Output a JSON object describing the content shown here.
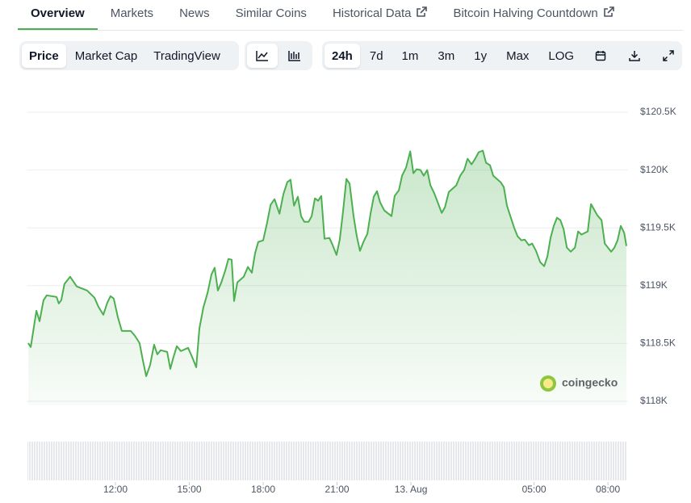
{
  "tabs": [
    "Overview",
    "Markets",
    "News",
    "Similar Coins",
    "Historical Data",
    "Bitcoin Halving Countdown"
  ],
  "chart_modes": [
    "Price",
    "Market Cap",
    "TradingView"
  ],
  "ranges": [
    "24h",
    "7d",
    "1m",
    "3m",
    "1y",
    "Max",
    "LOG"
  ],
  "watermark": "coingecko",
  "chart_data": {
    "type": "area",
    "color": "#4caf50",
    "grid": true,
    "x": [
      8.46,
      8.56,
      8.79,
      8.92,
      9.08,
      9.21,
      9.61,
      9.7,
      9.8,
      9.93,
      10.16,
      10.43,
      10.85,
      11.15,
      11.31,
      11.51,
      11.67,
      11.8,
      11.93,
      12.1,
      12.26,
      12.62,
      12.79,
      12.98,
      13.11,
      13.25,
      13.41,
      13.57,
      13.7,
      13.84,
      14.1,
      14.23,
      14.36,
      14.49,
      14.66,
      14.95,
      15.11,
      15.28,
      15.41,
      15.57,
      15.74,
      15.9,
      16.03,
      16.16,
      16.3,
      16.46,
      16.59,
      16.72,
      16.82,
      16.95,
      17.21,
      17.38,
      17.54,
      17.67,
      17.8,
      18.0,
      18.16,
      18.3,
      18.46,
      18.66,
      18.82,
      18.98,
      19.11,
      19.25,
      19.41,
      19.54,
      19.67,
      19.84,
      19.97,
      20.1,
      20.23,
      20.36,
      20.49,
      20.69,
      20.82,
      20.98,
      21.11,
      21.25,
      21.38,
      21.51,
      21.67,
      21.8,
      21.93,
      22.07,
      22.23,
      22.36,
      22.49,
      22.62,
      22.75,
      22.92,
      23.21,
      23.34,
      23.51,
      23.64,
      23.8,
      23.97,
      24.1,
      24.23,
      24.39,
      24.52,
      24.66,
      24.79,
      24.95,
      25.25,
      25.38,
      25.54,
      25.84,
      26.0,
      26.16,
      26.3,
      26.46,
      26.59,
      26.75,
      26.92,
      27.05,
      27.21,
      27.34,
      27.64,
      27.77,
      27.9,
      28.07,
      28.2,
      28.33,
      28.49,
      28.62,
      28.79,
      28.92,
      29.08,
      29.25,
      29.41,
      29.54,
      29.67,
      29.8,
      29.93,
      30.07,
      30.2,
      30.33,
      30.49,
      30.66,
      30.79,
      30.92,
      31.18,
      31.31,
      31.57,
      31.74,
      31.87,
      32.13,
      32.26,
      32.39,
      32.52,
      32.66,
      32.75
    ],
    "values": [
      118503,
      118469,
      118783,
      118692,
      118874,
      118916,
      118902,
      118846,
      118874,
      119014,
      119077,
      118993,
      118958,
      118895,
      118818,
      118748,
      118853,
      118909,
      118888,
      118727,
      118608,
      118608,
      118566,
      118503,
      118357,
      118217,
      118315,
      118490,
      118406,
      118441,
      118427,
      118280,
      118385,
      118476,
      118434,
      118462,
      118385,
      118294,
      118629,
      118811,
      118937,
      119098,
      119154,
      118958,
      119028,
      119133,
      119231,
      119224,
      118867,
      119028,
      119077,
      119161,
      119112,
      119280,
      119378,
      119392,
      119545,
      119699,
      119748,
      119622,
      119790,
      119895,
      119916,
      119692,
      119769,
      119601,
      119552,
      119552,
      119601,
      119755,
      119734,
      119776,
      119406,
      119413,
      119350,
      119266,
      119399,
      119657,
      119923,
      119881,
      119601,
      119427,
      119301,
      119378,
      119448,
      119622,
      119769,
      119818,
      119720,
      119650,
      119601,
      119776,
      119825,
      119951,
      120021,
      120161,
      119972,
      120007,
      120000,
      119951,
      120000,
      119867,
      119797,
      119629,
      119678,
      119811,
      119867,
      119951,
      120000,
      120098,
      120049,
      120091,
      120154,
      120168,
      120063,
      120042,
      119951,
      119895,
      119853,
      119692,
      119580,
      119496,
      119427,
      119392,
      119399,
      119350,
      119364,
      119301,
      119203,
      119168,
      119252,
      119413,
      119517,
      119587,
      119566,
      119489,
      119329,
      119294,
      119329,
      119469,
      119441,
      119469,
      119706,
      119608,
      119566,
      119364,
      119294,
      119329,
      119392,
      119517,
      119455,
      119343
    ],
    "xlim": [
      8.46,
      32.75
    ],
    "xticks": [
      {
        "value": 12,
        "label": "12:00"
      },
      {
        "value": 15,
        "label": "15:00"
      },
      {
        "value": 18,
        "label": "18:00"
      },
      {
        "value": 21,
        "label": "21:00"
      },
      {
        "value": 24,
        "label": "13. Aug"
      },
      {
        "value": 29,
        "label": "05:00"
      },
      {
        "value": 32,
        "label": "08:00"
      }
    ],
    "ylim": [
      118000,
      120500
    ],
    "yticks": [
      {
        "value": 118000,
        "label": "$118K"
      },
      {
        "value": 118500,
        "label": "$118.5K"
      },
      {
        "value": 119000,
        "label": "$119K"
      },
      {
        "value": 119500,
        "label": "$119.5K"
      },
      {
        "value": 120000,
        "label": "$120K"
      },
      {
        "value": 120500,
        "label": "$120.5K"
      }
    ]
  }
}
